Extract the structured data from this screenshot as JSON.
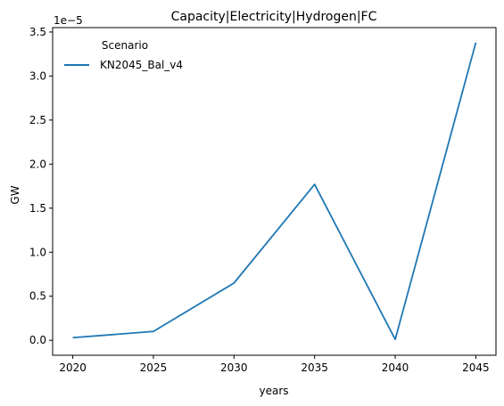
{
  "chart_data": {
    "type": "line",
    "title": "Capacity|Electricity|Hydrogen|FC",
    "xlabel": "years",
    "ylabel": "GW",
    "y_offset_label": "1e−5",
    "x": [
      2020,
      2025,
      2030,
      2035,
      2040,
      2045
    ],
    "x_ticks": [
      "2020",
      "2025",
      "2030",
      "2035",
      "2040",
      "2045"
    ],
    "y_ticks": [
      "0.0",
      "0.5",
      "1.0",
      "1.5",
      "2.0",
      "2.5",
      "3.0",
      "3.5"
    ],
    "y_tick_values": [
      0.0,
      0.5,
      1.0,
      1.5,
      2.0,
      2.5,
      3.0,
      3.5
    ],
    "y_scale_multiplier": 1e-05,
    "ylim": [
      -0.17,
      3.55
    ],
    "xlim": [
      2018.75,
      2046.25
    ],
    "grid": false,
    "legend": {
      "title": "Scenario",
      "position": "top-left"
    },
    "series": [
      {
        "name": "KN2045_Bal_v4",
        "color": "#1f77b4",
        "values": [
          0.03,
          0.1,
          0.65,
          1.77,
          0.01,
          3.38
        ]
      }
    ]
  }
}
